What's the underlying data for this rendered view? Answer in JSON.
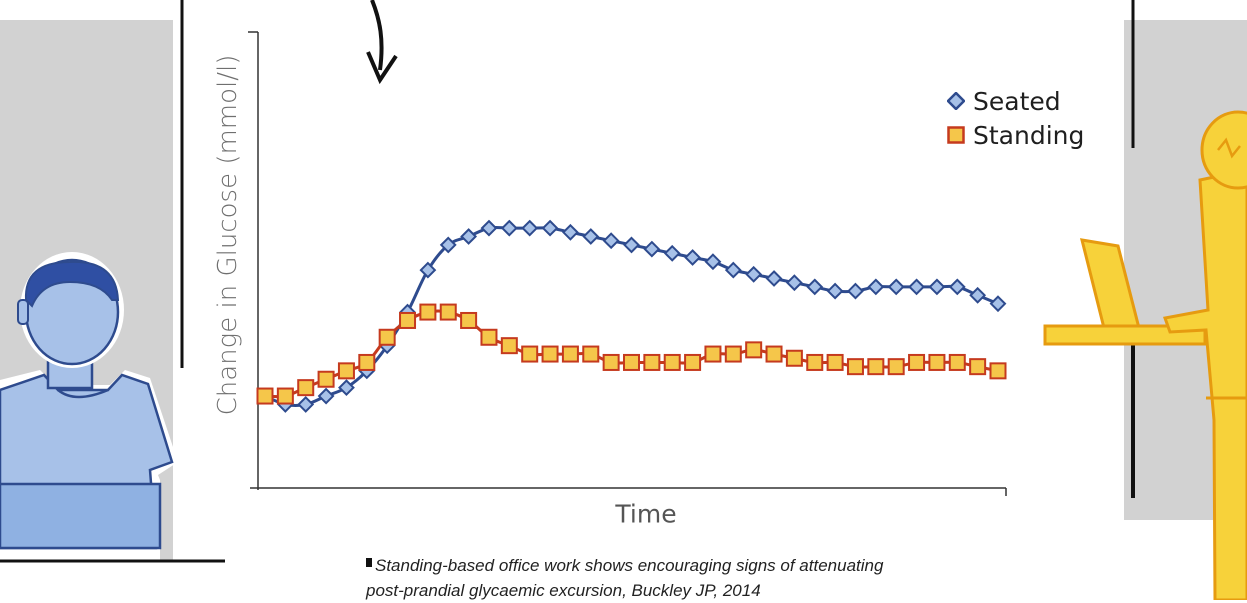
{
  "chart_data": {
    "type": "line",
    "xlabel": "Time",
    "ylabel": "Change in Glucose (mmol/l)",
    "x": [
      0,
      1,
      2,
      3,
      4,
      5,
      6,
      7,
      8,
      9,
      10,
      11,
      12,
      13,
      14,
      15,
      16,
      17,
      18,
      19,
      20,
      21,
      22,
      23,
      24,
      25,
      26,
      27,
      28,
      29,
      30,
      31,
      32,
      33,
      34,
      35,
      36
    ],
    "xlim": [
      0,
      36
    ],
    "ylim": [
      -1.0,
      4.3
    ],
    "series": [
      {
        "name": "Seated",
        "color": "#2e4b8e",
        "marker": "diamond",
        "marker_fill": "#a7c1e8",
        "values": [
          0.0,
          -0.1,
          -0.1,
          0.0,
          0.1,
          0.3,
          0.6,
          1.0,
          1.5,
          1.8,
          1.9,
          2.0,
          2.0,
          2.0,
          2.0,
          1.95,
          1.9,
          1.85,
          1.8,
          1.75,
          1.7,
          1.65,
          1.6,
          1.5,
          1.45,
          1.4,
          1.35,
          1.3,
          1.25,
          1.25,
          1.3,
          1.3,
          1.3,
          1.3,
          1.3,
          1.2,
          1.1
        ]
      },
      {
        "name": "Standing",
        "color": "#c53a1e",
        "marker": "square",
        "marker_fill": "#f5c64a",
        "values": [
          0.0,
          0.0,
          0.1,
          0.2,
          0.3,
          0.4,
          0.7,
          0.9,
          1.0,
          1.0,
          0.9,
          0.7,
          0.6,
          0.5,
          0.5,
          0.5,
          0.5,
          0.4,
          0.4,
          0.4,
          0.4,
          0.4,
          0.5,
          0.5,
          0.55,
          0.5,
          0.45,
          0.4,
          0.4,
          0.35,
          0.35,
          0.35,
          0.4,
          0.4,
          0.4,
          0.35,
          0.3
        ]
      }
    ],
    "legend_position": "top-right",
    "grid": false
  },
  "caption": {
    "line1": "Standing-based office work shows encouraging signs of attenuating",
    "line2": "post-prandial glycaemic excursion, Buckley JP, 2014"
  },
  "colors": {
    "seated_person_fill": "#a7c1e8",
    "seated_person_outline": "#2e4b8e",
    "standing_person_fill": "#f7d23a",
    "standing_person_outline": "#e69b10",
    "background_panel": "#d2d2d2"
  }
}
